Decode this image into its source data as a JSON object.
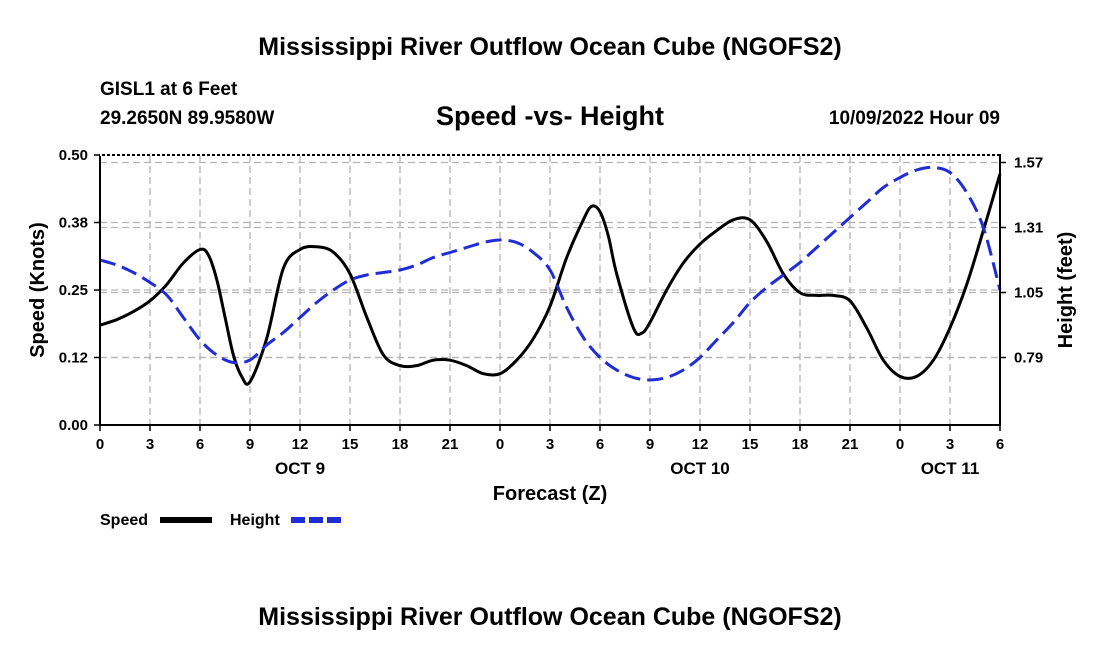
{
  "page": {
    "title_top": "Mississippi River Outflow Ocean Cube (NGOFS2)",
    "title_bottom": "Mississippi River Outflow Ocean Cube (NGOFS2)",
    "station": "GISL1 at 6 Feet",
    "coords": "29.2650N  89.9580W",
    "datetime": "10/09/2022 Hour 09"
  },
  "colors": {
    "speed": "#000000",
    "height": "#1f2dd6",
    "grid": "#b4b4b4"
  },
  "chart_data": {
    "type": "line",
    "title": "Speed -vs- Height",
    "xlabel": "Forecast (Z)",
    "ylabel": "Speed (Knots)",
    "y2label": "Height (feet)",
    "xlim": [
      0,
      54
    ],
    "ylim": [
      0,
      0.5
    ],
    "y2lim": [
      0.52,
      1.6
    ],
    "x_ticks": [
      0,
      3,
      6,
      9,
      12,
      15,
      18,
      21,
      24,
      27,
      30,
      33,
      36,
      39,
      42,
      45,
      48,
      51,
      54
    ],
    "x_tick_labels": [
      "0",
      "3",
      "6",
      "9",
      "12",
      "15",
      "18",
      "21",
      "0",
      "3",
      "6",
      "9",
      "12",
      "15",
      "18",
      "21",
      "0",
      "3",
      "6"
    ],
    "y_ticks": [
      0.0,
      0.125,
      0.25,
      0.375,
      0.5
    ],
    "y_tick_labels": [
      "0.00",
      "0.12",
      "0.25",
      "0.38",
      "0.50"
    ],
    "y2_ticks": [
      0.79,
      1.05,
      1.31,
      1.57
    ],
    "y2_tick_labels": [
      "0.79",
      "1.05",
      "1.31",
      "1.57"
    ],
    "date_labels": [
      {
        "x": 12,
        "label": "OCT 9"
      },
      {
        "x": 36,
        "label": "OCT 10"
      },
      {
        "x": 51,
        "label": "OCT 11"
      }
    ],
    "series": [
      {
        "name": "Speed",
        "axis": "left",
        "style": "solid",
        "x": [
          0,
          1,
          2,
          3,
          4,
          5,
          6,
          6.5,
          7,
          7.5,
          8,
          8.5,
          9,
          10,
          11,
          12,
          13,
          14,
          15,
          16,
          17,
          18,
          19,
          20,
          21,
          22,
          23,
          24,
          25,
          26,
          27,
          28,
          29,
          29.5,
          30,
          30.5,
          31,
          32,
          32.5,
          33,
          34,
          35,
          36,
          37,
          38,
          39,
          40,
          41,
          42,
          43,
          44,
          45,
          46,
          47,
          48,
          49,
          50,
          51,
          52,
          53,
          54
        ],
        "values": [
          0.185,
          0.195,
          0.21,
          0.23,
          0.26,
          0.3,
          0.325,
          0.315,
          0.27,
          0.2,
          0.13,
          0.09,
          0.08,
          0.16,
          0.29,
          0.325,
          0.33,
          0.32,
          0.28,
          0.2,
          0.13,
          0.11,
          0.11,
          0.12,
          0.12,
          0.11,
          0.095,
          0.095,
          0.12,
          0.16,
          0.22,
          0.31,
          0.38,
          0.405,
          0.395,
          0.35,
          0.28,
          0.18,
          0.17,
          0.19,
          0.25,
          0.3,
          0.335,
          0.36,
          0.38,
          0.38,
          0.34,
          0.28,
          0.245,
          0.24,
          0.24,
          0.23,
          0.18,
          0.12,
          0.09,
          0.09,
          0.12,
          0.18,
          0.26,
          0.36,
          0.465
        ]
      },
      {
        "name": "Height",
        "axis": "right",
        "style": "dashed",
        "x": [
          0,
          1,
          2,
          3,
          4,
          5,
          6,
          7,
          8,
          9,
          10,
          11,
          12,
          13,
          14,
          15,
          16,
          17,
          18,
          19,
          20,
          21,
          22,
          23,
          24,
          25,
          26,
          27,
          28,
          29,
          30,
          31,
          32,
          33,
          34,
          35,
          36,
          37,
          38,
          39,
          40,
          41,
          42,
          43,
          44,
          45,
          46,
          47,
          48,
          49,
          50,
          51,
          52,
          53,
          54
        ],
        "values": [
          1.18,
          1.16,
          1.13,
          1.09,
          1.04,
          0.95,
          0.86,
          0.8,
          0.77,
          0.78,
          0.84,
          0.89,
          0.95,
          1.01,
          1.06,
          1.1,
          1.12,
          1.13,
          1.14,
          1.16,
          1.19,
          1.21,
          1.23,
          1.25,
          1.26,
          1.25,
          1.21,
          1.14,
          0.99,
          0.87,
          0.79,
          0.74,
          0.71,
          0.7,
          0.71,
          0.74,
          0.79,
          0.86,
          0.93,
          1.01,
          1.07,
          1.12,
          1.17,
          1.23,
          1.29,
          1.35,
          1.41,
          1.47,
          1.51,
          1.54,
          1.55,
          1.53,
          1.45,
          1.31,
          1.06
        ]
      }
    ],
    "legend": [
      {
        "label": "Speed",
        "style": "solid"
      },
      {
        "label": "Height",
        "style": "dashed"
      }
    ],
    "legend_position": "bottom-left",
    "grid": true
  }
}
